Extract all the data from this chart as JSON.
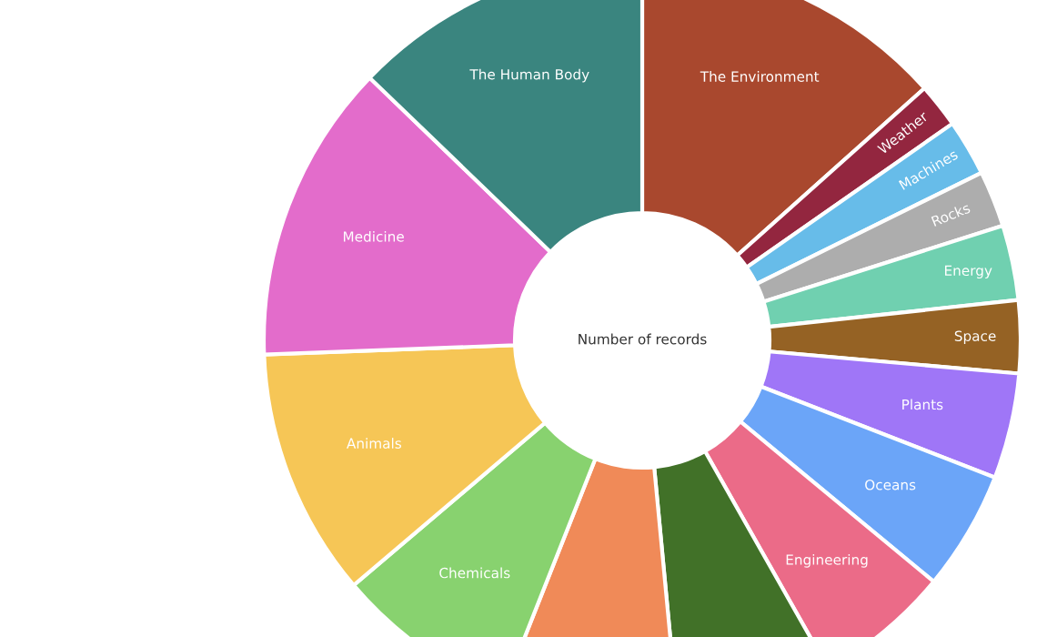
{
  "chart_data": {
    "type": "donut",
    "title": "Number of records",
    "categories": [
      "The Environment",
      "Weather",
      "Machines",
      "Rocks",
      "Energy",
      "Space",
      "Plants",
      "Oceans",
      "Engineering",
      null,
      null,
      "Chemicals",
      "Animals",
      "Medicine",
      "The Human Body"
    ],
    "values": [
      13.4,
      1.9,
      2.4,
      2.4,
      3.2,
      3.1,
      4.5,
      5.1,
      5.8,
      6.7,
      7.5,
      7.8,
      10.6,
      12.8,
      12.8
    ],
    "colors": [
      "#a9482e",
      "#93263f",
      "#67bce9",
      "#adadad",
      "#70d0b0",
      "#956224",
      "#9f76f7",
      "#6ba5f8",
      "#eb6b88",
      "#417128",
      "#f08a58",
      "#88d26f",
      "#f6c656",
      "#e36ccb",
      "#3a857f"
    ],
    "legend": false
  }
}
